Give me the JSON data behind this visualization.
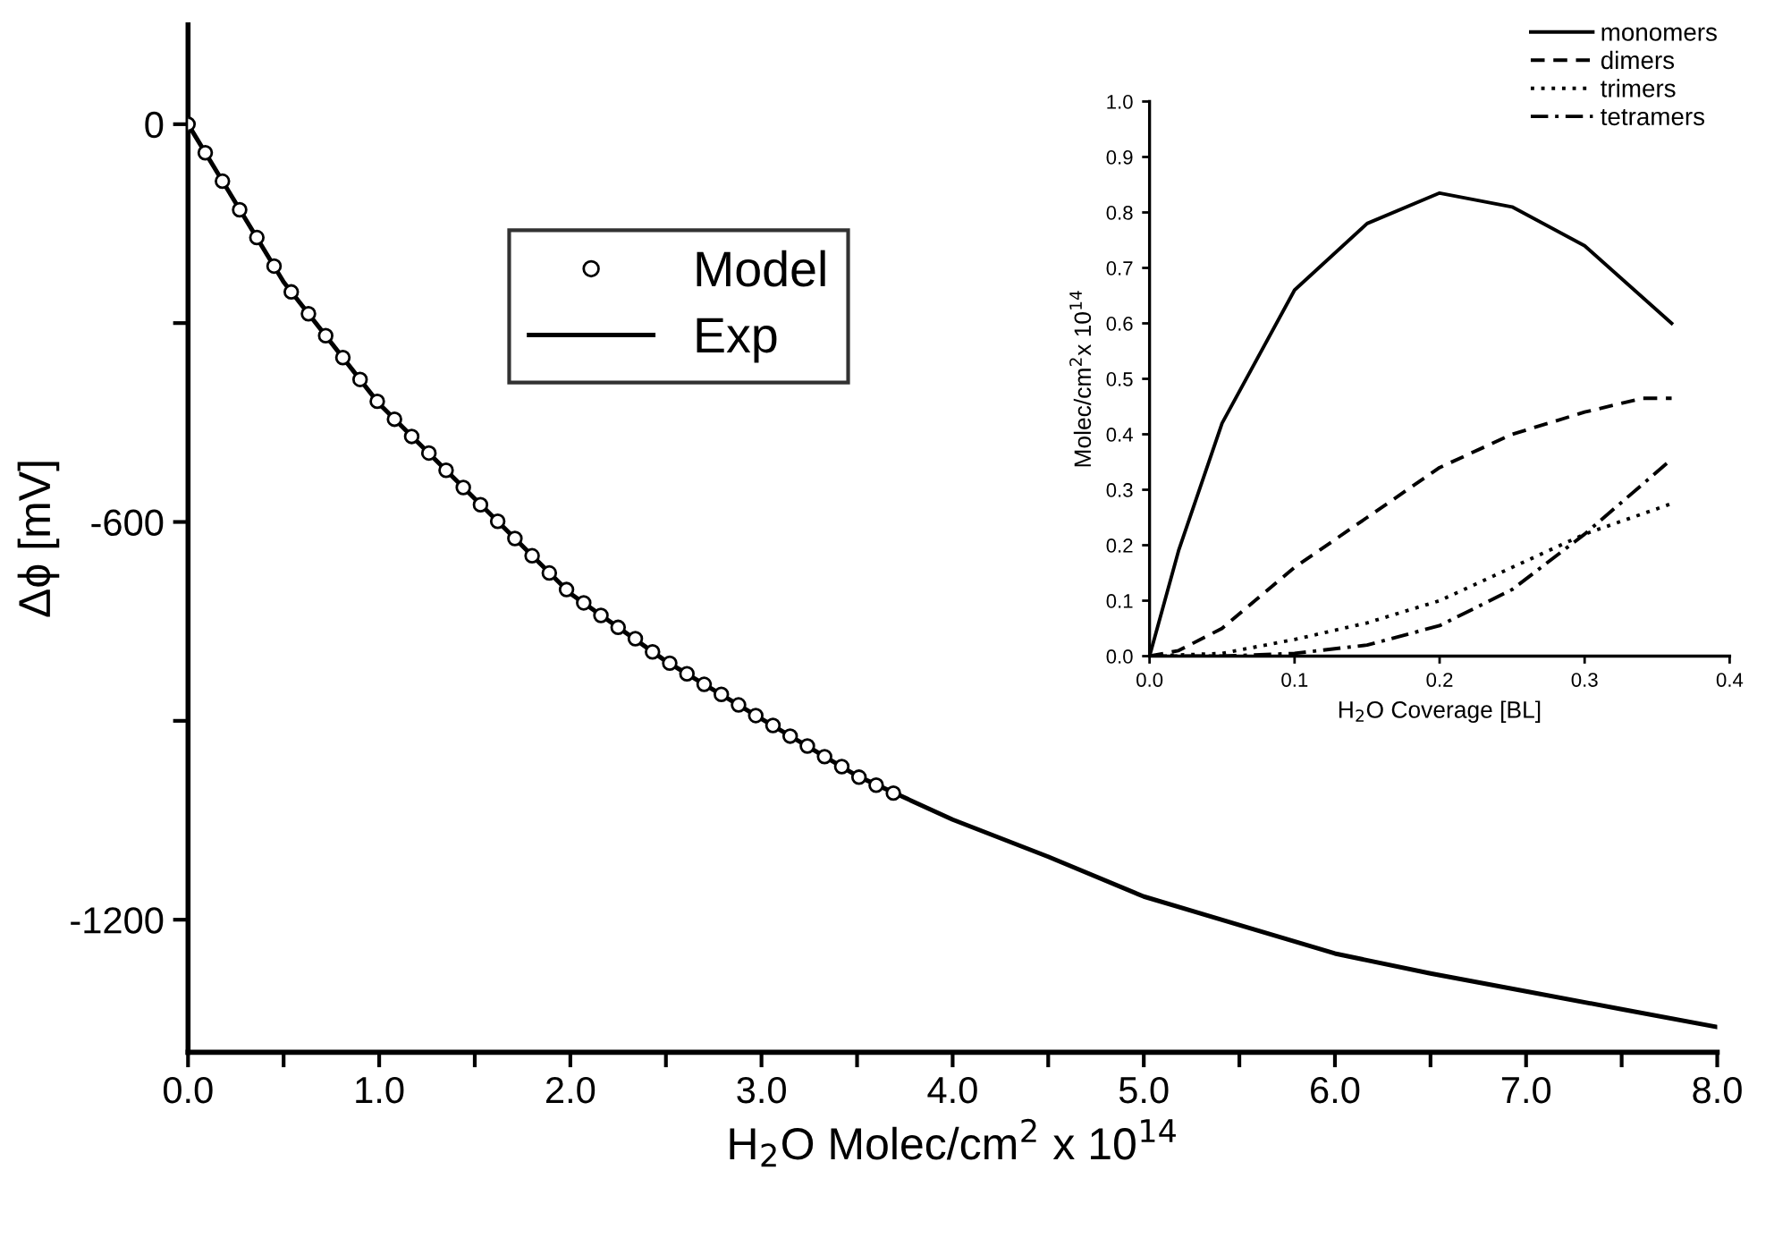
{
  "chart_data": [
    {
      "type": "line",
      "xlabel": "H$_{2}$O Molec/cm$^{2}$ x 10$^{14}$",
      "ylabel": "Δϕ [mV]",
      "xlim": [
        0,
        8
      ],
      "ylim": [
        -1400,
        150
      ],
      "xticks": [
        {
          "value": 0,
          "label": "0.0"
        },
        {
          "value": 0.5,
          "label": null
        },
        {
          "value": 1,
          "label": "1.0"
        },
        {
          "value": 1.5,
          "label": null
        },
        {
          "value": 2,
          "label": "2.0"
        },
        {
          "value": 2.5,
          "label": null
        },
        {
          "value": 3,
          "label": "3.0"
        },
        {
          "value": 3.5,
          "label": null
        },
        {
          "value": 4,
          "label": "4.0"
        },
        {
          "value": 4.5,
          "label": null
        },
        {
          "value": 5,
          "label": "5.0"
        },
        {
          "value": 5.5,
          "label": null
        },
        {
          "value": 6,
          "label": "6.0"
        },
        {
          "value": 6.5,
          "label": null
        },
        {
          "value": 7,
          "label": "7.0"
        },
        {
          "value": 7.5,
          "label": null
        },
        {
          "value": 8,
          "label": "8.0"
        }
      ],
      "yticks": [
        0,
        {
          "value": -300,
          "label": null
        },
        -600,
        {
          "value": -900,
          "label": null
        },
        -1200
      ],
      "legend": "top left",
      "grid": false,
      "series": [
        {
          "name": "Model",
          "type": "scatter",
          "marker": "circle",
          "color": "#000000",
          "x": [
            0,
            0.09,
            0.18,
            0.27,
            0.36,
            0.45,
            0.54,
            0.63,
            0.72,
            0.81,
            0.9,
            0.99,
            1.08,
            1.17,
            1.26,
            1.35,
            1.44,
            1.53,
            1.62,
            1.71,
            1.8,
            1.89,
            1.98,
            2.07,
            2.16,
            2.25,
            2.34,
            2.43,
            2.52,
            2.61,
            2.7,
            2.79,
            2.88,
            2.97,
            3.06,
            3.15,
            3.24,
            3.33,
            3.42,
            3.51,
            3.6,
            3.69
          ],
          "values": [
            0,
            -43,
            -86,
            -129,
            -171,
            -214,
            -253,
            -286,
            -319,
            -352,
            -385,
            -418,
            -445,
            -471,
            -496,
            -522,
            -548,
            -574,
            -599,
            -625,
            -651,
            -677,
            -702,
            -722,
            -741,
            -759,
            -776,
            -796,
            -813,
            -829,
            -845,
            -860,
            -876,
            -892,
            -907,
            -923,
            -938,
            -954,
            -969,
            -985,
            -997,
            -1009
          ]
        },
        {
          "name": "Exp",
          "type": "line",
          "line_style": "solid",
          "color": "#000000",
          "x": [
            0,
            0.5,
            1,
            1.5,
            2,
            2.5,
            3,
            3.5,
            4,
            4.5,
            5,
            5.5,
            6,
            6.5,
            7,
            7.5,
            8
          ],
          "values": [
            0,
            -238,
            -422,
            -565,
            -708,
            -810,
            -897,
            -983,
            -1049,
            -1105,
            -1165,
            -1208,
            -1251,
            -1281,
            -1308,
            -1335,
            -1362
          ]
        }
      ]
    },
    {
      "type": "line",
      "xlabel": "H$_{2}$O Coverage [BL]",
      "ylabel": "Molec/cm$^{2}$x 10$^{14}$",
      "xlim": [
        0,
        0.4
      ],
      "ylim": [
        0,
        1
      ],
      "xticks": [
        {
          "value": 0,
          "label": "0.0"
        },
        0.1,
        0.2,
        0.3,
        0.4
      ],
      "yticks": [
        {
          "value": 0,
          "label": "0.0"
        },
        0.1,
        0.2,
        0.3,
        0.4,
        0.5,
        0.6,
        0.7,
        0.8,
        0.9,
        {
          "value": 1,
          "label": "1.0"
        }
      ],
      "legend": "top right",
      "grid": false,
      "series": [
        {
          "name": "monomers",
          "line_style": "solid",
          "color": "#000000",
          "x": [
            0,
            0.02,
            0.05,
            0.1,
            0.15,
            0.2,
            0.25,
            0.3,
            0.36
          ],
          "values": [
            0,
            0.19,
            0.42,
            0.66,
            0.78,
            0.835,
            0.81,
            0.74,
            0.6
          ]
        },
        {
          "name": "dimers",
          "line_style": "dashed",
          "color": "#000000",
          "x": [
            0,
            0.02,
            0.05,
            0.1,
            0.15,
            0.2,
            0.25,
            0.3,
            0.34,
            0.36
          ],
          "values": [
            0,
            0.01,
            0.05,
            0.16,
            0.25,
            0.34,
            0.4,
            0.44,
            0.465,
            0.465
          ]
        },
        {
          "name": "trimers",
          "line_style": "dotted",
          "color": "#000000",
          "x": [
            0,
            0.05,
            0.1,
            0.15,
            0.2,
            0.25,
            0.3,
            0.36
          ],
          "values": [
            0,
            0.005,
            0.03,
            0.06,
            0.1,
            0.16,
            0.22,
            0.275
          ]
        },
        {
          "name": "tetramers",
          "line_style": "dashdot",
          "color": "#000000",
          "x": [
            0,
            0.05,
            0.1,
            0.15,
            0.2,
            0.25,
            0.3,
            0.36
          ],
          "values": [
            0,
            0.0,
            0.005,
            0.02,
            0.055,
            0.12,
            0.22,
            0.355
          ]
        }
      ]
    }
  ]
}
